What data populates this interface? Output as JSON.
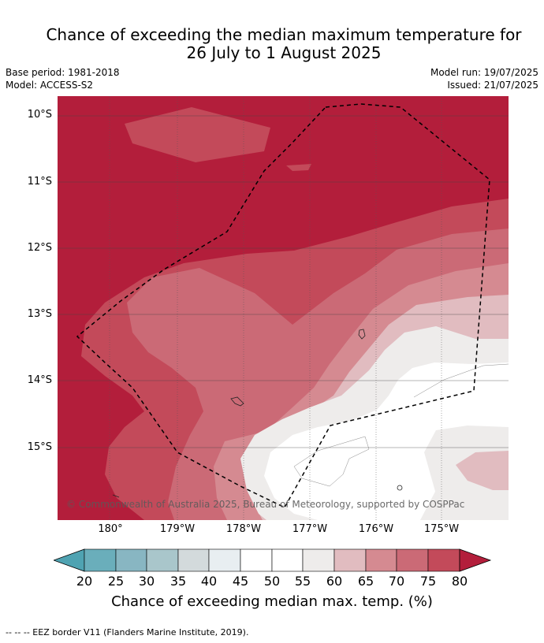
{
  "title": {
    "line1": "Chance of exceeding the median maximum temperature for",
    "line2": "26 July to 1 August 2025"
  },
  "meta": {
    "base_period": "Base period: 1981-2018",
    "model": "Model: ACCESS-S2",
    "model_run": "Model run: 19/07/2025",
    "issued": "Issued: 21/07/2025"
  },
  "map": {
    "lat_labels": [
      "10°S",
      "11°S",
      "12°S",
      "13°S",
      "14°S",
      "15°S"
    ],
    "lon_labels": [
      "180°",
      "179°W",
      "178°W",
      "177°W",
      "176°W",
      "175°W"
    ],
    "copyright": "© Commonwealth of Australia 2025, Bureau of Meteorology, supported by COSPPac",
    "colors": {
      "c80": "#b31e3b",
      "c75": "#c34a5a",
      "c70": "#cb6a76",
      "c65": "#d58a91",
      "c60": "#e1bcc0",
      "c55": "#eeeceb",
      "c50": "#ffffff",
      "c45": "#e8eef1",
      "c40": "#d3dadc",
      "c35": "#a9c6cb",
      "c30": "#88b6c2",
      "c25": "#6aaebb",
      "c20": "#4fa3b2"
    }
  },
  "colorbar": {
    "labels": [
      "20",
      "25",
      "30",
      "35",
      "40",
      "45",
      "50",
      "55",
      "60",
      "65",
      "70",
      "75",
      "80"
    ],
    "title": "Chance of exceeding median max. temp. (%)"
  },
  "footnote": "--  --  -- EEZ border V11 (Flanders Marine Institute, 2019)."
}
